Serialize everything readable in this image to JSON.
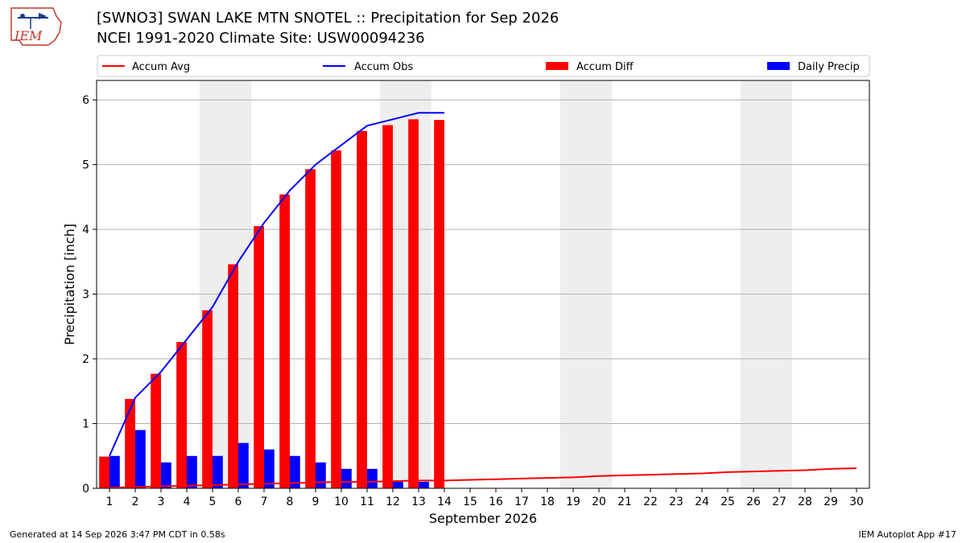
{
  "header": {
    "title_line1": "[SWNO3] SWAN LAKE MTN SNOTEL :: Precipitation for Sep 2026",
    "title_line2": "NCEI 1991-2020 Climate Site: USW00094236",
    "logo_text": "IEM"
  },
  "footer": {
    "generated": "Generated at 14 Sep 2026 3:47 PM CDT in 0.58s",
    "app": "IEM Autoplot App #17"
  },
  "colors": {
    "accum_avg": "#ff0000",
    "accum_obs": "#0000ff",
    "accum_diff": "#ff0000",
    "daily_precip": "#0000ff",
    "weekend_shade": "#eeeeee",
    "grid": "#b0b0b0"
  },
  "chart_data": {
    "type": "bar",
    "xlabel": "September 2026",
    "ylabel": "Precipitation [inch]",
    "xlim": [
      0.5,
      30.5
    ],
    "ylim": [
      0,
      6.3
    ],
    "yticks": [
      0,
      1,
      2,
      3,
      4,
      5,
      6
    ],
    "grid": "horizontal",
    "legend_position": "top",
    "days": [
      1,
      2,
      3,
      4,
      5,
      6,
      7,
      8,
      9,
      10,
      11,
      12,
      13,
      14,
      15,
      16,
      17,
      18,
      19,
      20,
      21,
      22,
      23,
      24,
      25,
      26,
      27,
      28,
      29,
      30
    ],
    "weekend_shading": [
      [
        5,
        6
      ],
      [
        12,
        13
      ],
      [
        19,
        20
      ],
      [
        26,
        27
      ]
    ],
    "series": [
      {
        "name": "Accum Avg",
        "type": "line",
        "x": [
          1,
          2,
          3,
          4,
          5,
          6,
          7,
          8,
          9,
          10,
          11,
          12,
          13,
          14,
          15,
          16,
          17,
          18,
          19,
          20,
          21,
          22,
          23,
          24,
          25,
          26,
          27,
          28,
          29,
          30
        ],
        "values": [
          0.01,
          0.02,
          0.03,
          0.04,
          0.05,
          0.06,
          0.07,
          0.08,
          0.09,
          0.1,
          0.1,
          0.11,
          0.12,
          0.12,
          0.13,
          0.14,
          0.15,
          0.16,
          0.17,
          0.19,
          0.2,
          0.21,
          0.22,
          0.23,
          0.25,
          0.26,
          0.27,
          0.28,
          0.3,
          0.31
        ]
      },
      {
        "name": "Accum Obs",
        "type": "line",
        "x": [
          1,
          2,
          3,
          4,
          5,
          6,
          7,
          8,
          9,
          10,
          11,
          12,
          13,
          14
        ],
        "values": [
          0.5,
          1.4,
          1.8,
          2.3,
          2.8,
          3.5,
          4.1,
          4.6,
          5.0,
          5.3,
          5.6,
          5.7,
          5.8,
          5.8
        ]
      },
      {
        "name": "Accum Diff",
        "type": "bar",
        "x": [
          1,
          2,
          3,
          4,
          5,
          6,
          7,
          8,
          9,
          10,
          11,
          12,
          13,
          14
        ],
        "values": [
          0.49,
          1.38,
          1.77,
          2.26,
          2.75,
          3.46,
          4.05,
          4.54,
          4.93,
          5.22,
          5.52,
          5.61,
          5.7,
          5.69
        ]
      },
      {
        "name": "Daily Precip",
        "type": "bar",
        "x": [
          1,
          2,
          3,
          4,
          5,
          6,
          7,
          8,
          9,
          10,
          11,
          12,
          13
        ],
        "values": [
          0.5,
          0.9,
          0.4,
          0.5,
          0.5,
          0.7,
          0.6,
          0.5,
          0.4,
          0.3,
          0.3,
          0.1,
          0.1
        ]
      }
    ]
  }
}
